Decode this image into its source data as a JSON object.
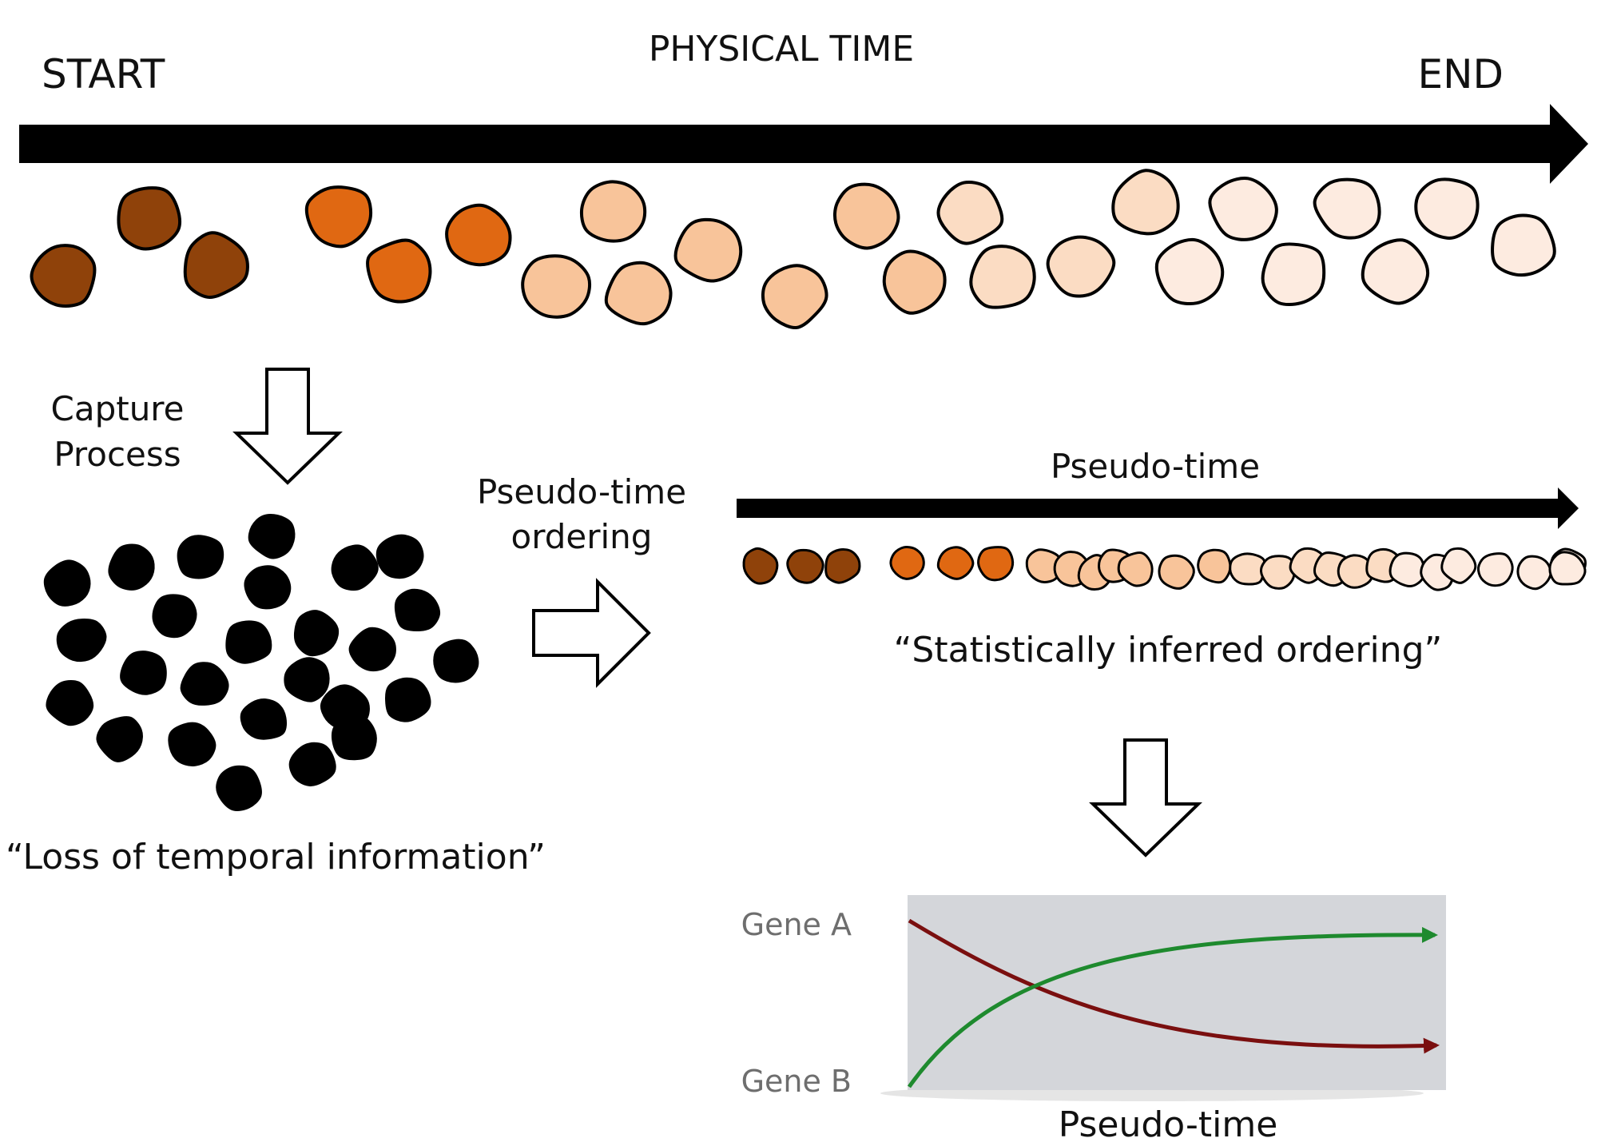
{
  "physical_time": {
    "title": "PHYSICAL TIME",
    "start_label": "START",
    "end_label": "END"
  },
  "capture": {
    "label_line1": "Capture",
    "label_line2": "Process",
    "caption": "“Loss of temporal information”"
  },
  "ordering": {
    "label_line1": "Pseudo-time",
    "label_line2": "ordering"
  },
  "pseudo_time": {
    "title": "Pseudo-time",
    "caption": "“Statistically inferred ordering”"
  },
  "expression_plot": {
    "gene_a_label": "Gene A",
    "gene_b_label": "Gene B",
    "x_label": "Pseudo-time"
  },
  "colors": {
    "stage_dark_brown": "#8f420a",
    "stage_orange": "#e06812",
    "stage_peach": "#f8c49a",
    "stage_light_peach": "#fbdcc3",
    "stage_pale": "#fdebe0",
    "gene_a_curve": "#7a0f0f",
    "gene_b_curve": "#1e8a2e",
    "plot_background": "#d4d6da"
  }
}
